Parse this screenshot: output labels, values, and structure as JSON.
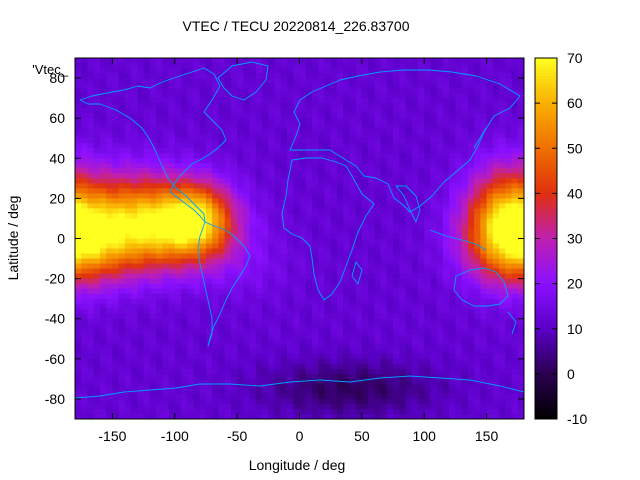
{
  "chart_data": {
    "type": "heatmap",
    "title": "VTEC / TECU 20220814_226.83700",
    "xlabel": "Longitude / deg",
    "ylabel": "Latitude / deg",
    "legend_label": "'Vtec_",
    "xlim": [
      -180,
      180
    ],
    "ylim": [
      -90,
      90
    ],
    "x_ticks": [
      -150,
      -100,
      -50,
      0,
      50,
      100,
      150
    ],
    "y_ticks": [
      -80,
      -60,
      -40,
      -20,
      0,
      20,
      40,
      60,
      80
    ],
    "colorbar": {
      "range": [
        -10,
        70
      ],
      "ticks": [
        -10,
        0,
        10,
        20,
        30,
        40,
        50,
        60,
        70
      ],
      "palette": [
        "#000000",
        "#2a0050",
        "#5a00c8",
        "#8a10ff",
        "#c020b0",
        "#e03010",
        "#f07000",
        "#f8b000",
        "#ffff20"
      ]
    },
    "anomaly_peaks": [
      {
        "lon": -175,
        "lat": -3,
        "tec": 48,
        "sx": 32,
        "sy": 14
      },
      {
        "lon": -140,
        "lat": 12,
        "tec": 40,
        "sx": 38,
        "sy": 16
      },
      {
        "lon": -100,
        "lat": 5,
        "tec": 48,
        "sx": 32,
        "sy": 14
      },
      {
        "lon": -80,
        "lat": 10,
        "tec": 40,
        "sx": 18,
        "sy": 12
      },
      {
        "lon": 165,
        "lat": 10,
        "tec": 48,
        "sx": 22,
        "sy": 18
      },
      {
        "lon": -40,
        "lat": -15,
        "tec": 16,
        "sx": 25,
        "sy": 12
      },
      {
        "lon": 0,
        "lat": 3,
        "tec": 12,
        "sx": 30,
        "sy": 10
      }
    ],
    "background_tec": 12,
    "low_region": {
      "lon": 40,
      "lat": -75,
      "tec": -6,
      "sx": 50,
      "sy": 10
    }
  }
}
